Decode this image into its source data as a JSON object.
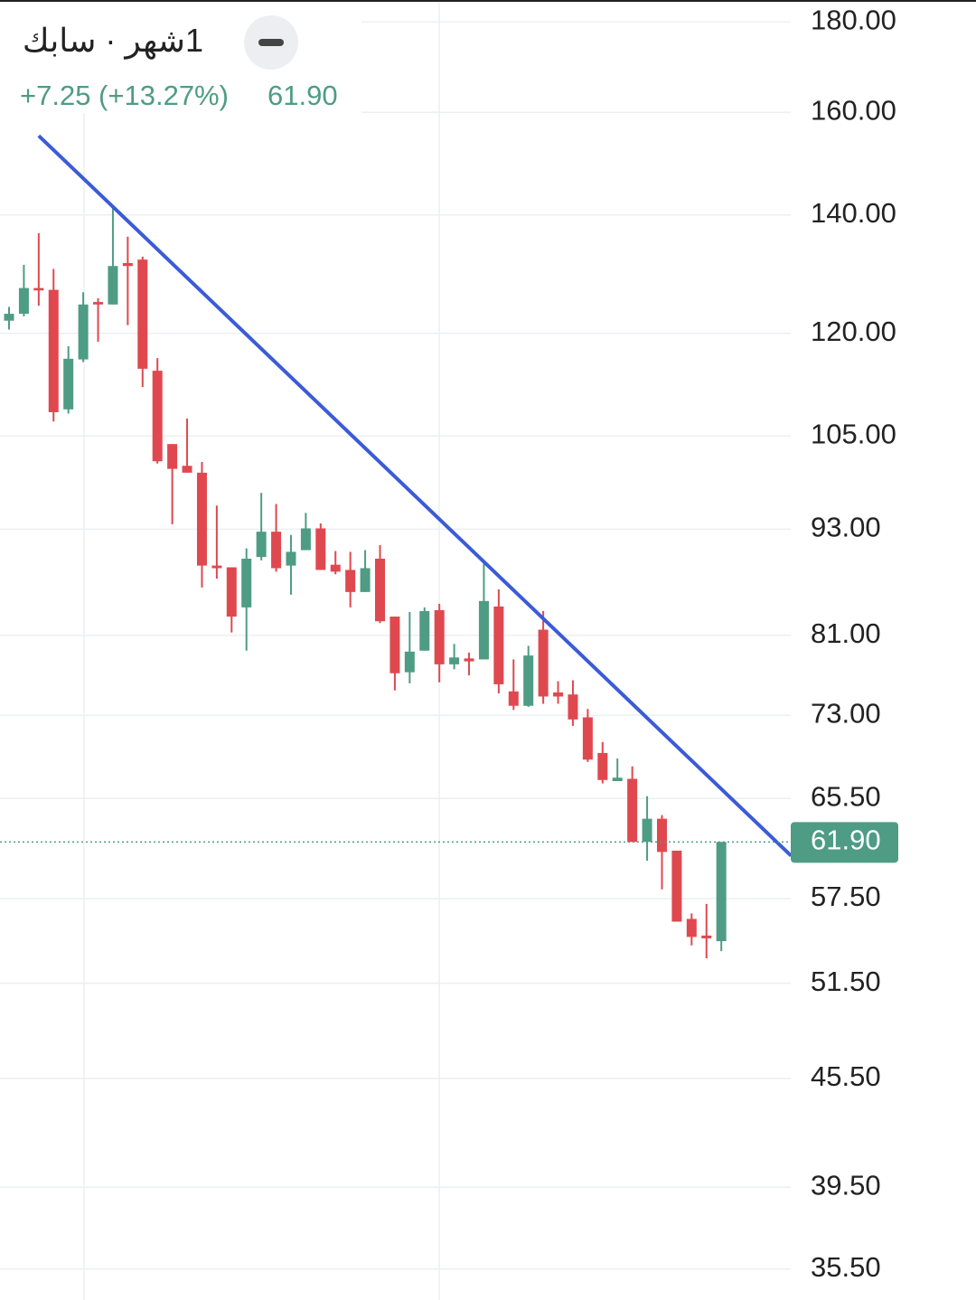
{
  "chart_data": {
    "type": "candlestick",
    "title": "1شهر · سابك",
    "change_label": "+7.25 (+13.27%)",
    "last_label": "61.90",
    "last": 61.9,
    "up_color": "#4e9c84",
    "down_color": "#e0484f",
    "log": true,
    "grid": true,
    "categories": [
      null,
      null,
      null,
      null,
      null,
      null,
      null,
      null,
      null,
      null,
      null,
      null,
      null,
      null,
      null,
      null,
      null,
      null,
      null,
      null,
      null,
      null,
      null,
      null,
      null,
      null,
      null,
      null,
      null,
      null,
      null,
      null,
      null,
      null,
      null,
      null,
      null,
      null,
      null,
      null,
      null,
      null,
      null,
      null,
      null,
      null,
      null,
      null,
      null
    ],
    "open": [
      122.0,
      123.1,
      127.3,
      127.0,
      108.7,
      116.0,
      125.0,
      124.6,
      131.5,
      132.1,
      114.3,
      103.9,
      101.0,
      100.1,
      88.7,
      88.5,
      84.0,
      89.7,
      92.7,
      88.7,
      90.5,
      93.1,
      88.8,
      88.2,
      85.7,
      89.5,
      83.0,
      77.2,
      79.4,
      83.7,
      78.0,
      78.6,
      78.5,
      84.1,
      75.3,
      73.9,
      81.6,
      75.2,
      75.0,
      72.8,
      69.5,
      67.0,
      67.2,
      61.9,
      63.8,
      61.2,
      56.0,
      54.8,
      54.4
    ],
    "high": [
      124.2,
      131.2,
      136.7,
      130.5,
      118.0,
      126.6,
      125.6,
      141.2,
      136.1,
      132.6,
      116.2,
      103.9,
      107.4,
      101.5,
      95.9,
      88.5,
      90.7,
      97.5,
      96.1,
      92.3,
      95.0,
      93.7,
      90.4,
      90.3,
      90.5,
      91.1,
      83.0,
      83.5,
      84.0,
      84.4,
      80.1,
      79.2,
      89.0,
      86.0,
      78.5,
      79.9,
      83.6,
      76.3,
      76.4,
      73.6,
      70.5,
      69.0,
      68.3,
      65.7,
      64.1,
      61.2,
      56.4,
      57.1,
      61.9
    ],
    "low": [
      120.6,
      122.7,
      124.4,
      107.0,
      108.1,
      115.6,
      118.7,
      124.6,
      121.3,
      111.9,
      101.3,
      93.6,
      100.1,
      86.2,
      87.2,
      81.3,
      79.4,
      89.3,
      88.0,
      85.4,
      90.5,
      88.2,
      87.7,
      84.0,
      85.7,
      82.3,
      75.4,
      76.1,
      79.4,
      76.2,
      77.5,
      76.9,
      78.5,
      75.1,
      73.5,
      73.8,
      74.1,
      74.1,
      72.0,
      68.7,
      66.8,
      67.0,
      61.9,
      60.4,
      58.2,
      55.8,
      54.1,
      53.2,
      53.7
    ],
    "close": [
      123.1,
      127.3,
      126.9,
      108.3,
      116.1,
      124.6,
      124.6,
      131.0,
      131.0,
      114.6,
      101.6,
      100.6,
      100.1,
      88.7,
      88.4,
      83.0,
      89.5,
      92.7,
      88.4,
      90.3,
      93.1,
      88.2,
      88.0,
      85.7,
      88.4,
      82.5,
      77.1,
      79.3,
      83.6,
      78.0,
      78.7,
      78.3,
      84.7,
      76.0,
      73.9,
      78.9,
      74.8,
      74.8,
      72.6,
      68.9,
      67.1,
      67.3,
      61.9,
      63.8,
      61.1,
      55.8,
      54.7,
      54.6,
      61.9
    ],
    "trendline": {
      "x": [
        2,
        52.7
      ],
      "y": [
        155.2,
        60.8
      ],
      "color": "#3b5bd7"
    },
    "ylim": [
      34.1,
      185.2
    ],
    "yticks": [
      {
        "value": 180,
        "label": "180.00"
      },
      {
        "value": 160,
        "label": "160.00"
      },
      {
        "value": 140,
        "label": "140.00"
      },
      {
        "value": 120,
        "label": "120.00"
      },
      {
        "value": 105,
        "label": "105.00"
      },
      {
        "value": 93,
        "label": "93.00"
      },
      {
        "value": 81,
        "label": "81.00"
      },
      {
        "value": 73,
        "label": "73.00"
      },
      {
        "value": 65.5,
        "label": "65.50"
      },
      {
        "value": 57.5,
        "label": "57.50"
      },
      {
        "value": 51.5,
        "label": "51.50"
      },
      {
        "value": 45.5,
        "label": "45.50"
      },
      {
        "value": 39.5,
        "label": "39.50"
      },
      {
        "value": 35.5,
        "label": "35.50"
      }
    ]
  }
}
